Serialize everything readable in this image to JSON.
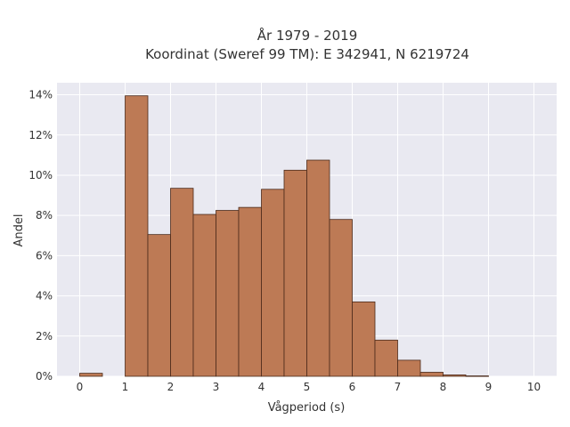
{
  "chart_data": {
    "type": "bar",
    "title_line1": "År 1979 - 2019",
    "title_line2": "Koordinat (Sweref 99 TM): E 342941, N 6219724",
    "xlabel": "Vågperiod (s)",
    "ylabel": "Andel",
    "xlim": [
      -0.5,
      10.5
    ],
    "ylim": [
      0,
      14.6
    ],
    "x_ticks": [
      0,
      1,
      2,
      3,
      4,
      5,
      6,
      7,
      8,
      9,
      10
    ],
    "x_tick_labels": [
      "0",
      "1",
      "2",
      "3",
      "4",
      "5",
      "6",
      "7",
      "8",
      "9",
      "10"
    ],
    "y_ticks": [
      0,
      2,
      4,
      6,
      8,
      10,
      12,
      14
    ],
    "y_tick_labels": [
      "0%",
      "2%",
      "4%",
      "6%",
      "8%",
      "10%",
      "12%",
      "14%"
    ],
    "grid": true,
    "bin_width": 0.5,
    "bins": [
      {
        "x0": 0.0,
        "value": 0.15
      },
      {
        "x0": 0.5,
        "value": 0
      },
      {
        "x0": 1.0,
        "value": 13.95
      },
      {
        "x0": 1.5,
        "value": 7.05
      },
      {
        "x0": 2.0,
        "value": 9.35
      },
      {
        "x0": 2.5,
        "value": 8.05
      },
      {
        "x0": 3.0,
        "value": 8.25
      },
      {
        "x0": 3.5,
        "value": 8.4
      },
      {
        "x0": 4.0,
        "value": 9.3
      },
      {
        "x0": 4.5,
        "value": 10.25
      },
      {
        "x0": 5.0,
        "value": 10.75
      },
      {
        "x0": 5.5,
        "value": 7.8
      },
      {
        "x0": 6.0,
        "value": 3.7
      },
      {
        "x0": 6.5,
        "value": 1.8
      },
      {
        "x0": 7.0,
        "value": 0.8
      },
      {
        "x0": 7.5,
        "value": 0.2
      },
      {
        "x0": 8.0,
        "value": 0.07
      },
      {
        "x0": 8.5,
        "value": 0.02
      }
    ],
    "colors": {
      "bar_fill": "#bd7a55",
      "bar_stroke": "#4a2a1a",
      "plot_bg": "#e9e9f1",
      "grid": "#ffffff"
    }
  }
}
